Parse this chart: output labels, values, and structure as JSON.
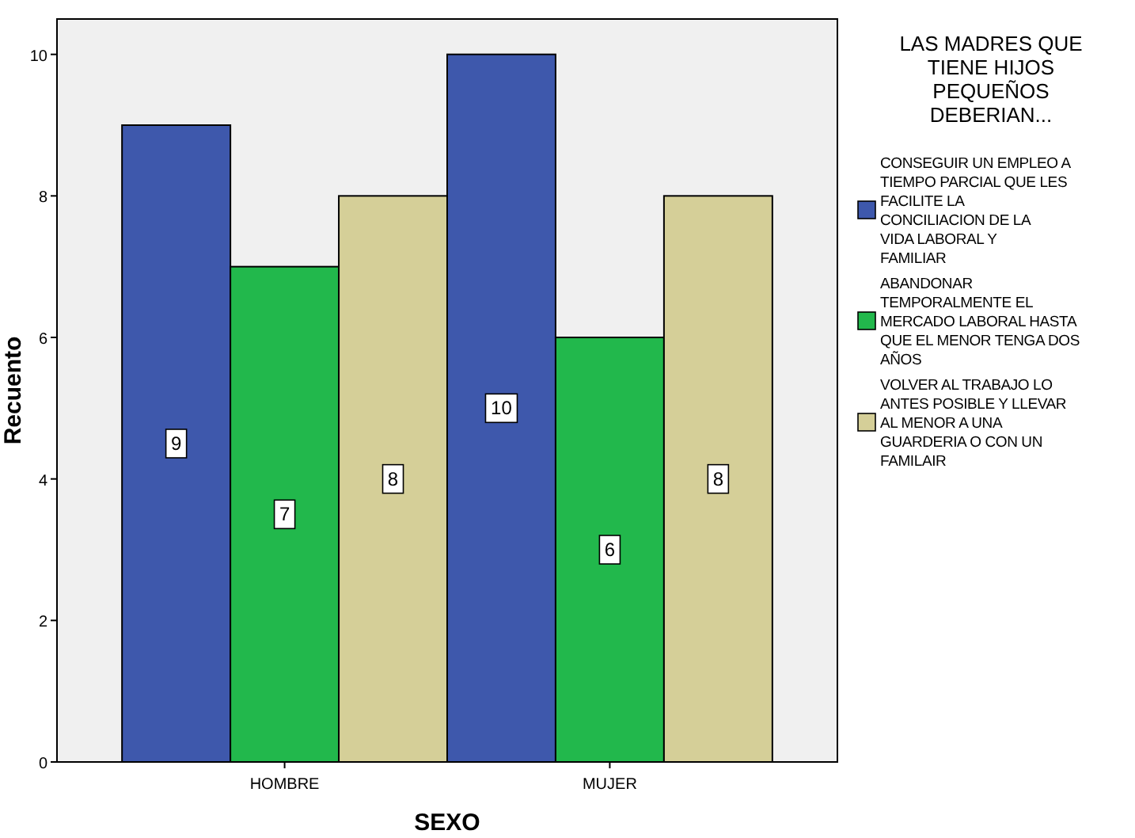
{
  "chart_data": {
    "type": "bar",
    "xlabel": "SEXO",
    "ylabel": "Recuento",
    "legend_title": "LAS MADRES QUE TIENE HIJOS PEQUEÑOS DEBERIAN...",
    "categories": [
      "HOMBRE",
      "MUJER"
    ],
    "series": [
      {
        "name": "CONSEGUIR UN EMPLEO A TIEMPO PARCIAL QUE LES FACILITE LA CONCILIACION DE LA VIDA LABORAL Y FAMILIAR",
        "color": "#3e58ac",
        "values": [
          9,
          10
        ]
      },
      {
        "name": "ABANDONAR TEMPORALMENTE EL MERCADO LABORAL HASTA QUE EL MENOR TENGA DOS AÑOS",
        "color": "#22b84c",
        "values": [
          7,
          6
        ]
      },
      {
        "name": "VOLVER AL TRABAJO LO ANTES POSIBLE Y LLEVAR AL MENOR A UNA GUARDERIA O CON UN FAMILAIR",
        "color": "#d5cf98",
        "values": [
          8,
          8
        ]
      }
    ],
    "ylim": [
      0,
      10.5
    ],
    "yticks": [
      0,
      2,
      4,
      6,
      8,
      10
    ],
    "data_labels": true,
    "legend": "right",
    "grid": false
  }
}
